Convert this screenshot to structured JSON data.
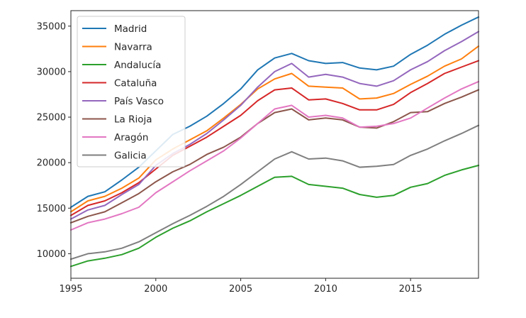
{
  "chart_data": {
    "type": "line",
    "title": "",
    "xlabel": "",
    "ylabel": "",
    "xlim": [
      1995,
      2019
    ],
    "ylim": [
      7300,
      36700
    ],
    "grid": false,
    "legend_position": "top-left",
    "x": [
      1995,
      1996,
      1997,
      1998,
      1999,
      2000,
      2001,
      2002,
      2003,
      2004,
      2005,
      2006,
      2007,
      2008,
      2009,
      2010,
      2011,
      2012,
      2013,
      2014,
      2015,
      2016,
      2017,
      2018,
      2019
    ],
    "x_ticks": [
      "1995",
      "2000",
      "2005",
      "2010",
      "2015"
    ],
    "y_ticks": [
      "10000",
      "15000",
      "20000",
      "25000",
      "30000",
      "35000"
    ],
    "series": [
      {
        "name": "Madrid",
        "color": "#1f77b4",
        "values": [
          15100,
          16300,
          16800,
          18100,
          19500,
          21300,
          23100,
          24000,
          25100,
          26500,
          28100,
          30200,
          31500,
          32000,
          31200,
          30900,
          31000,
          30400,
          30200,
          30600,
          31900,
          32900,
          34100,
          35100,
          36000
        ]
      },
      {
        "name": "Navarra",
        "color": "#ff7f0e",
        "values": [
          14600,
          15800,
          16300,
          17200,
          18300,
          20300,
          21500,
          22500,
          23500,
          24900,
          26400,
          28100,
          29200,
          29800,
          28400,
          28300,
          28200,
          27000,
          27100,
          27600,
          28600,
          29500,
          30600,
          31400,
          32800
        ]
      },
      {
        "name": "Andalucía",
        "color": "#2ca02c",
        "values": [
          8600,
          9200,
          9500,
          9900,
          10600,
          11800,
          12800,
          13600,
          14600,
          15500,
          16400,
          17400,
          18400,
          18500,
          17600,
          17400,
          17200,
          16500,
          16200,
          16400,
          17300,
          17700,
          18600,
          19200,
          19700
        ]
      },
      {
        "name": "Cataluña",
        "color": "#d62728",
        "values": [
          14200,
          15300,
          15800,
          16700,
          17800,
          19300,
          20800,
          21800,
          22800,
          24000,
          25200,
          26800,
          28000,
          28200,
          26900,
          27000,
          26500,
          25800,
          25800,
          26400,
          27700,
          28700,
          29800,
          30500,
          31200
        ]
      },
      {
        "name": "País Vasco",
        "color": "#9467bd",
        "values": [
          13800,
          14800,
          15300,
          16500,
          17600,
          19700,
          21000,
          22000,
          23200,
          24700,
          26300,
          28300,
          30000,
          30900,
          29400,
          29700,
          29400,
          28700,
          28400,
          29000,
          30200,
          31100,
          32300,
          33300,
          34400
        ]
      },
      {
        "name": "La Rioja",
        "color": "#8c564b",
        "values": [
          13400,
          14100,
          14600,
          15600,
          16600,
          17900,
          19000,
          19800,
          20900,
          21700,
          22800,
          24300,
          25500,
          25900,
          24700,
          24900,
          24700,
          23900,
          23800,
          24500,
          25500,
          25600,
          26500,
          27200,
          28000
        ]
      },
      {
        "name": "Aragón",
        "color": "#e377c2",
        "values": [
          12600,
          13400,
          13800,
          14400,
          15100,
          16700,
          17900,
          19100,
          20200,
          21300,
          22700,
          24300,
          25900,
          26300,
          25000,
          25200,
          24900,
          23900,
          24000,
          24300,
          24900,
          26000,
          27100,
          28100,
          28900
        ]
      },
      {
        "name": "Galicia",
        "color": "#7f7f7f",
        "values": [
          9400,
          10000,
          10200,
          10600,
          11300,
          12300,
          13300,
          14200,
          15200,
          16300,
          17600,
          19000,
          20400,
          21200,
          20400,
          20500,
          20200,
          19500,
          19600,
          19800,
          20800,
          21500,
          22400,
          23200,
          24100
        ]
      }
    ]
  }
}
